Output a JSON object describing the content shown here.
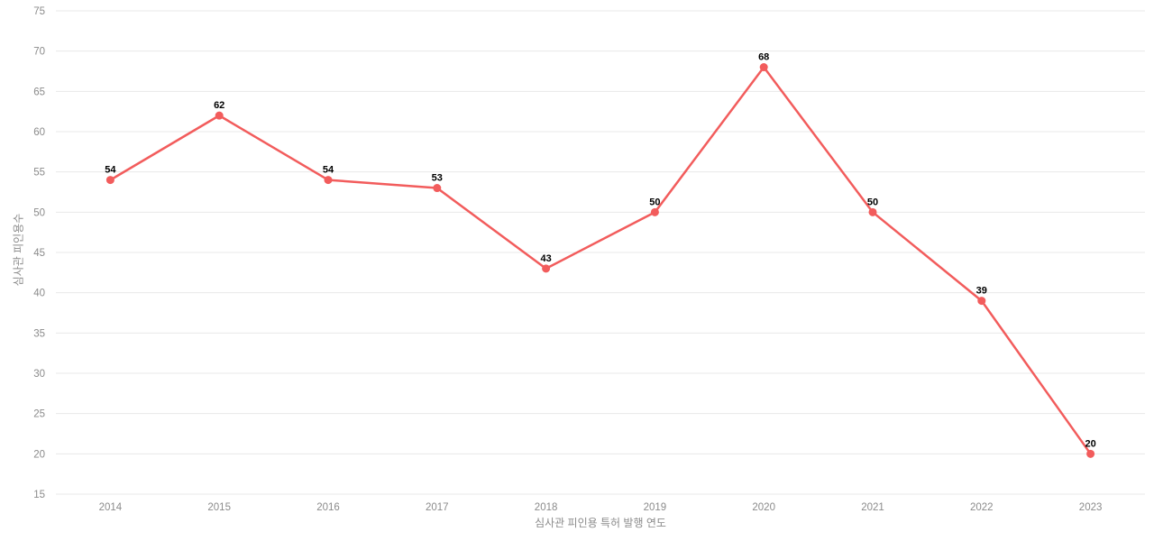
{
  "chart_data": {
    "type": "line",
    "title": "",
    "categories": [
      "2014",
      "2015",
      "2016",
      "2017",
      "2018",
      "2019",
      "2020",
      "2021",
      "2022",
      "2023"
    ],
    "values": [
      54,
      62,
      54,
      53,
      43,
      50,
      68,
      50,
      39,
      20
    ],
    "xlabel": "심사관 피인용 특허 발행 연도",
    "ylabel": "심사관 피인용수",
    "ylim": [
      15,
      75
    ],
    "yticks": [
      15,
      20,
      25,
      30,
      35,
      40,
      45,
      50,
      55,
      60,
      65,
      70,
      75
    ],
    "grid": "horizontal",
    "legend": "none",
    "value_labels_shown": true,
    "colors": {
      "line": "#F25C5C",
      "marker": "#F25C5C",
      "grid": "#E8E8E8",
      "tick_label": "#8B8B8B",
      "axis_title": "#8B8B8B",
      "value_label": "#000000",
      "background": "#FFFFFF"
    }
  }
}
